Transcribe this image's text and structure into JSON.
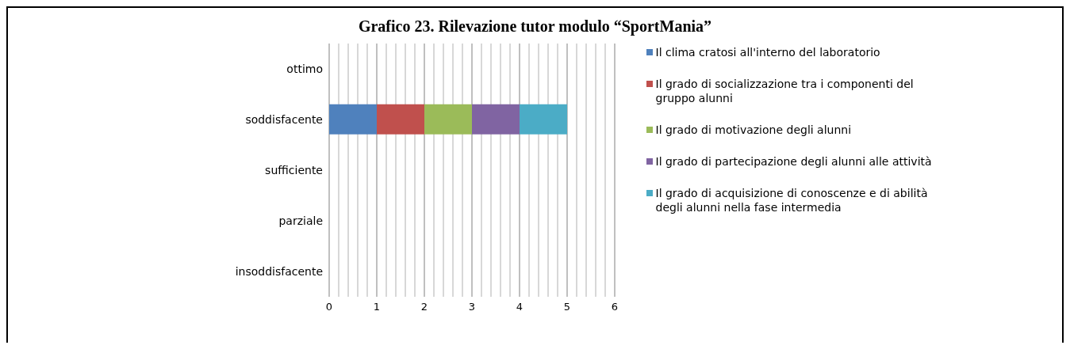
{
  "chart_data": {
    "type": "bar",
    "title": "Grafico 23. Rilevazione tutor modulo “SportMania”",
    "orientation": "horizontal",
    "stacked": true,
    "categories": [
      "ottimo",
      "soddisfacente",
      "sufficiente",
      "parziale",
      "insoddisfacente"
    ],
    "series": [
      {
        "name": "Il clima cratosi all'interno del laboratorio",
        "color": "#4f81bd",
        "values": [
          null,
          1,
          null,
          null,
          null
        ]
      },
      {
        "name": "Il grado di socializzazione tra i componenti del gruppo alunni",
        "color": "#c0504d",
        "values": [
          null,
          1,
          null,
          null,
          null
        ]
      },
      {
        "name": "Il grado di motivazione  degli alunni",
        "color": "#9bbb59",
        "values": [
          null,
          1,
          null,
          null,
          null
        ]
      },
      {
        "name": "Il grado di partecipazione degli alunni alle attività",
        "color": "#8064a2",
        "values": [
          null,
          1,
          null,
          null,
          null
        ]
      },
      {
        "name": "Il grado di acquisizione di conoscenze e di abilità degli alunni nella fase intermedia",
        "color": "#4bacc6",
        "values": [
          null,
          1,
          null,
          null,
          null
        ]
      }
    ],
    "xlim": [
      0,
      6
    ],
    "xticks": [
      0,
      1,
      2,
      3,
      4,
      5,
      6
    ],
    "grid": "x",
    "legend": "right"
  }
}
